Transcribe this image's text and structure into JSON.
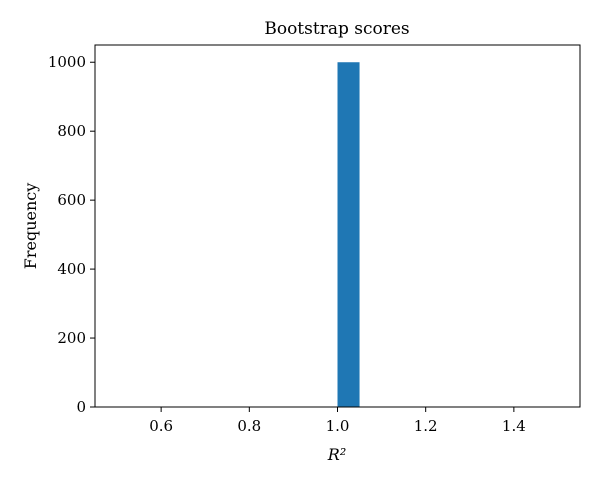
{
  "chart_data": {
    "type": "bar",
    "title": "Bootstrap scores",
    "xlabel": "R²",
    "ylabel": "Frequency",
    "xlim": [
      0.45,
      1.55
    ],
    "ylim": [
      0,
      1050
    ],
    "xticks": [
      0.6,
      0.8,
      1.0,
      1.2,
      1.4
    ],
    "xtick_labels": [
      "0.6",
      "0.8",
      "1.0",
      "1.2",
      "1.4"
    ],
    "yticks": [
      0,
      200,
      400,
      600,
      800,
      1000
    ],
    "ytick_labels": [
      "0",
      "200",
      "400",
      "600",
      "800",
      "1000"
    ],
    "bins": [
      {
        "x0": 1.0,
        "x1": 1.05,
        "count": 1000
      }
    ],
    "bar_color": "#1f77b4",
    "grid": false
  }
}
